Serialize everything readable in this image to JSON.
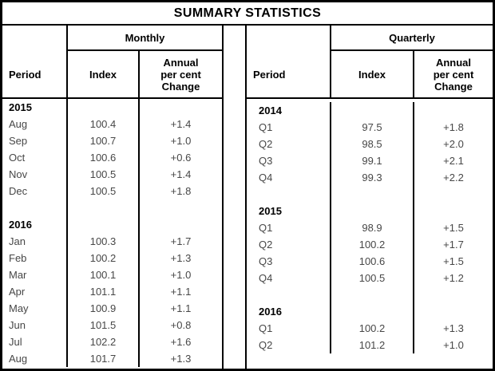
{
  "title": "SUMMARY STATISTICS",
  "colors": {
    "border": "#000000",
    "heading_text": "#000000",
    "data_text": "#474747",
    "background": "#ffffff"
  },
  "tables": {
    "monthly": {
      "group_label": "Monthly",
      "headers": {
        "period": "Period",
        "index": "Index",
        "change": "Annual\nper cent\nChange"
      },
      "rows": [
        {
          "period": "2015",
          "index": "",
          "change": "",
          "year": true
        },
        {
          "period": "Aug",
          "index": "100.4",
          "change": "+1.4"
        },
        {
          "period": "Sep",
          "index": "100.7",
          "change": "+1.0"
        },
        {
          "period": "Oct",
          "index": "100.6",
          "change": "+0.6"
        },
        {
          "period": "Nov",
          "index": "100.5",
          "change": "+1.4"
        },
        {
          "period": "Dec",
          "index": "100.5",
          "change": "+1.8"
        },
        {
          "period": "",
          "index": "",
          "change": ""
        },
        {
          "period": "2016",
          "index": "",
          "change": "",
          "year": true
        },
        {
          "period": "Jan",
          "index": "100.3",
          "change": "+1.7"
        },
        {
          "period": "Feb",
          "index": "100.2",
          "change": "+1.3"
        },
        {
          "period": "Mar",
          "index": "100.1",
          "change": "+1.0"
        },
        {
          "period": "Apr",
          "index": "101.1",
          "change": "+1.1"
        },
        {
          "period": "May",
          "index": "100.9",
          "change": "+1.1"
        },
        {
          "period": "Jun",
          "index": "101.5",
          "change": "+0.8"
        },
        {
          "period": "Jul",
          "index": "102.2",
          "change": "+1.6"
        },
        {
          "period": "Aug",
          "index": "101.7",
          "change": "+1.3"
        }
      ]
    },
    "quarterly": {
      "group_label": "Quarterly",
      "headers": {
        "period": "Period",
        "index": "Index",
        "change": "Annual\nper cent\nChange"
      },
      "rows": [
        {
          "period": "2014",
          "index": "",
          "change": "",
          "year": true
        },
        {
          "period": "Q1",
          "index": "97.5",
          "change": "+1.8"
        },
        {
          "period": "Q2",
          "index": "98.5",
          "change": "+2.0"
        },
        {
          "period": "Q3",
          "index": "99.1",
          "change": "+2.1"
        },
        {
          "period": "Q4",
          "index": "99.3",
          "change": "+2.2"
        },
        {
          "period": "",
          "index": "",
          "change": ""
        },
        {
          "period": "2015",
          "index": "",
          "change": "",
          "year": true
        },
        {
          "period": "Q1",
          "index": "98.9",
          "change": "+1.5"
        },
        {
          "period": "Q2",
          "index": "100.2",
          "change": "+1.7"
        },
        {
          "period": "Q3",
          "index": "100.6",
          "change": "+1.5"
        },
        {
          "period": "Q4",
          "index": "100.5",
          "change": "+1.2"
        },
        {
          "period": "",
          "index": "",
          "change": ""
        },
        {
          "period": "2016",
          "index": "",
          "change": "",
          "year": true
        },
        {
          "period": "Q1",
          "index": "100.2",
          "change": "+1.3"
        },
        {
          "period": "Q2",
          "index": "101.2",
          "change": "+1.0"
        }
      ]
    }
  }
}
